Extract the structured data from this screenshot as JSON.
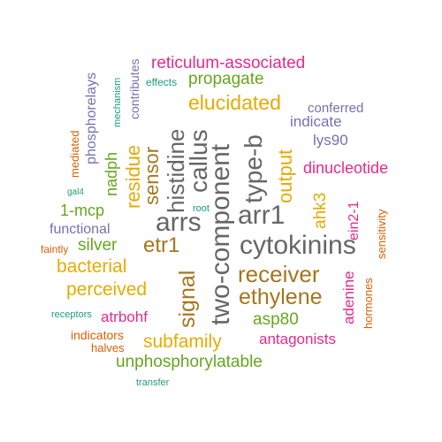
{
  "palette": {
    "teal": "#1b9e77",
    "orange": "#d95f02",
    "purple": "#7570b3",
    "magenta": "#e7298a",
    "green": "#66a61e",
    "gold": "#e6ab02",
    "brown": "#a6761d",
    "gray": "#666666"
  },
  "words": [
    {
      "text": "cytokinins",
      "color": "gray"
    },
    {
      "text": "two-component",
      "color": "gray"
    },
    {
      "text": "arr1",
      "color": "gray"
    },
    {
      "text": "arrs",
      "color": "gray"
    },
    {
      "text": "type-b",
      "color": "gray"
    },
    {
      "text": "callus",
      "color": "gray"
    },
    {
      "text": "histidine",
      "color": "gray"
    },
    {
      "text": "receiver",
      "color": "brown"
    },
    {
      "text": "ethylene",
      "color": "brown"
    },
    {
      "text": "signal",
      "color": "brown"
    },
    {
      "text": "etr1",
      "color": "brown"
    },
    {
      "text": "sensor",
      "color": "brown"
    },
    {
      "text": "output",
      "color": "gold"
    },
    {
      "text": "elucidated",
      "color": "gold"
    },
    {
      "text": "residue",
      "color": "gold"
    },
    {
      "text": "bacterial",
      "color": "gold"
    },
    {
      "text": "perceived",
      "color": "gold"
    },
    {
      "text": "subfamily",
      "color": "gold"
    },
    {
      "text": "ahk3",
      "color": "gold"
    },
    {
      "text": "propagate",
      "color": "green"
    },
    {
      "text": "unphosphorylatable",
      "color": "green"
    },
    {
      "text": "asp80",
      "color": "green"
    },
    {
      "text": "silver",
      "color": "green"
    },
    {
      "text": "1-mcp",
      "color": "green"
    },
    {
      "text": "nadph",
      "color": "green"
    },
    {
      "text": "reticulum-associated",
      "color": "magenta"
    },
    {
      "text": "dinucleotide",
      "color": "magenta"
    },
    {
      "text": "antagonists",
      "color": "magenta"
    },
    {
      "text": "atrbohf",
      "color": "magenta"
    },
    {
      "text": "adenine",
      "color": "magenta"
    },
    {
      "text": "ein2-1",
      "color": "magenta"
    },
    {
      "text": "lys90",
      "color": "purple"
    },
    {
      "text": "indicate",
      "color": "purple"
    },
    {
      "text": "conferred",
      "color": "purple"
    },
    {
      "text": "functional",
      "color": "purple"
    },
    {
      "text": "phosphorelays",
      "color": "purple"
    },
    {
      "text": "contributes",
      "color": "purple"
    },
    {
      "text": "hormones",
      "color": "orange"
    },
    {
      "text": "sensitivity",
      "color": "orange"
    },
    {
      "text": "mediated",
      "color": "orange"
    },
    {
      "text": "indicators",
      "color": "orange"
    },
    {
      "text": "halves",
      "color": "orange"
    },
    {
      "text": "faintly",
      "color": "orange"
    },
    {
      "text": "mechanism",
      "color": "teal"
    },
    {
      "text": "effects",
      "color": "teal"
    },
    {
      "text": "gal4",
      "color": "teal"
    },
    {
      "text": "root",
      "color": "teal"
    },
    {
      "text": "receptors",
      "color": "teal"
    },
    {
      "text": "transfer",
      "color": "teal"
    }
  ]
}
